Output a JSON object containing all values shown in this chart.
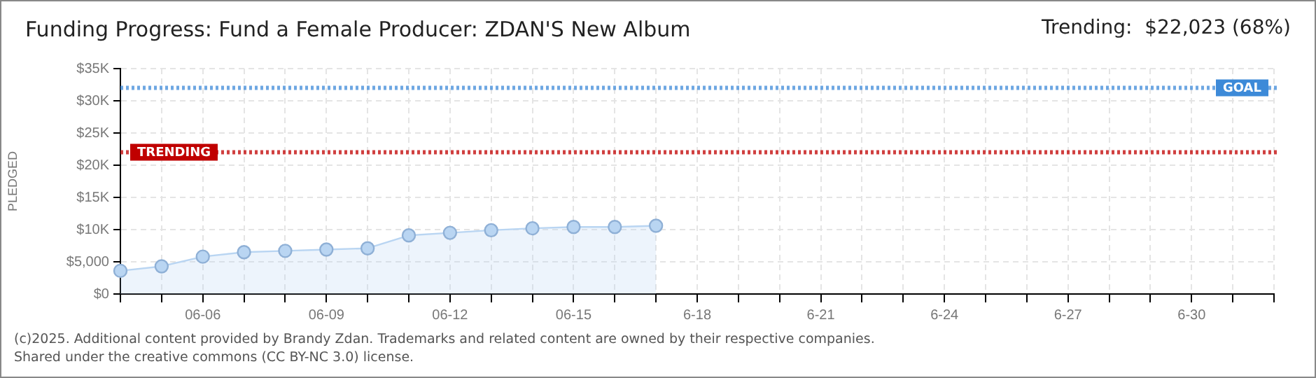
{
  "chart_data": {
    "type": "area",
    "title": "Funding Progress: Fund a Female Producer: ZDAN'S New Album",
    "subtitle": "Trending:  $22,023 (68%)",
    "ylabel": "PLEDGED",
    "categories": [
      null,
      null,
      "06-06",
      null,
      null,
      "06-09",
      null,
      null,
      "06-12",
      null,
      null,
      "06-15",
      null,
      null,
      "6-18",
      null,
      null,
      "6-21",
      null,
      null,
      "6-24",
      null,
      null,
      "6-27",
      null,
      null,
      "6-30",
      null,
      null
    ],
    "series": [
      {
        "color": "#b9d5f2",
        "values": [
          3600,
          4300,
          5800,
          6500,
          6700,
          6900,
          7100,
          9100,
          9500,
          9900,
          10200,
          10400,
          10400,
          10600,
          null,
          null,
          null,
          null,
          null,
          null,
          null,
          null,
          null,
          null,
          null,
          null,
          null,
          null,
          null
        ]
      }
    ],
    "ylim": [
      0,
      35000
    ],
    "yticks": [
      {
        "value": 0,
        "label": "$0"
      },
      {
        "value": 5000,
        "label": "$5,000"
      },
      {
        "value": 10000,
        "label": "$10K"
      },
      {
        "value": 15000,
        "label": "$15K"
      },
      {
        "value": 20000,
        "label": "$20K"
      },
      {
        "value": 25000,
        "label": "$25K"
      },
      {
        "value": 30000,
        "label": "$30K"
      },
      {
        "value": 35000,
        "label": "$35K"
      }
    ],
    "ref_lines": [
      {
        "axis": "y",
        "value": 32000,
        "label": "GOAL",
        "color": "#3d8ad8",
        "line_style": "dotted"
      },
      {
        "axis": "y",
        "value": 22023,
        "label": "TRENDING",
        "color": "#c00000",
        "line_style": "dotted"
      }
    ],
    "annotations": [
      "(c)2025. Additional content provided by Brandy Zdan. Trademarks and related content are owned by their respective companies.",
      "Shared under the creative commons (CC BY-NC 3.0) license."
    ],
    "grid": true,
    "marker": "circle"
  }
}
